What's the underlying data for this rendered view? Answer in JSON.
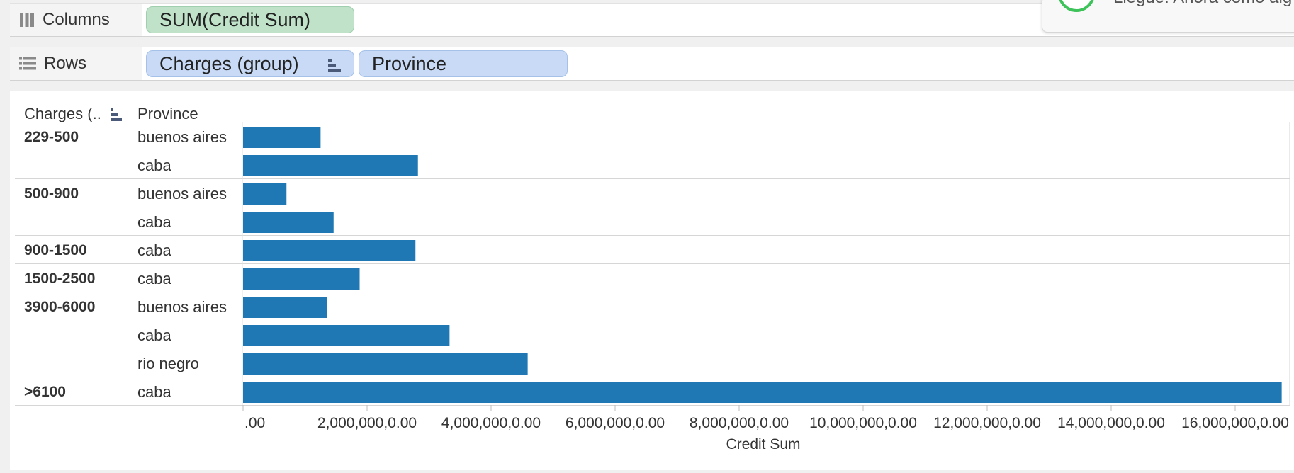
{
  "columns_shelf": {
    "label": "Columns",
    "pills": [
      {
        "text": "SUM(Credit Sum)"
      }
    ]
  },
  "rows_shelf": {
    "label": "Rows",
    "pills": [
      {
        "text": "Charges (group)"
      },
      {
        "text": "Province"
      }
    ]
  },
  "notification": {
    "text": "Llegue. Ahora como alg"
  },
  "table_headers": {
    "charges": "Charges (..",
    "province": "Province"
  },
  "chart_data": {
    "type": "bar",
    "orientation": "horizontal",
    "bar_color": "#1f77b4",
    "groups": [
      {
        "label": "229-500",
        "rows": [
          {
            "province": "buenos aires",
            "value": 1250000
          },
          {
            "province": "caba",
            "value": 2820000
          }
        ]
      },
      {
        "label": "500-900",
        "rows": [
          {
            "province": "buenos aires",
            "value": 700000
          },
          {
            "province": "caba",
            "value": 1460000
          }
        ]
      },
      {
        "label": "900-1500",
        "rows": [
          {
            "province": "caba",
            "value": 2780000
          }
        ]
      },
      {
        "label": "1500-2500",
        "rows": [
          {
            "province": "caba",
            "value": 1880000
          }
        ]
      },
      {
        "label": "3900-6000",
        "rows": [
          {
            "province": "buenos aires",
            "value": 1350000
          },
          {
            "province": "caba",
            "value": 3330000
          },
          {
            "province": "rio negro",
            "value": 4590000
          }
        ]
      },
      {
        "label": ">6100",
        "rows": [
          {
            "province": "caba",
            "value": 16750000
          }
        ]
      }
    ],
    "xlim": [
      0,
      17500000
    ],
    "xticks": [
      0,
      2000000,
      4000000,
      6000000,
      8000000,
      10000000,
      12000000,
      14000000,
      16000000
    ],
    "xtick_labels": [
      ".00",
      "2,000,000,0.00",
      "4,000,000,0.00",
      "6,000,000,0.00",
      "8,000,000,0.00",
      "10,000,000,0.00",
      "12,000,000,0.00",
      "14,000,000,0.00",
      "16,000,000,0.00"
    ],
    "xlabel": "Credit Sum"
  }
}
